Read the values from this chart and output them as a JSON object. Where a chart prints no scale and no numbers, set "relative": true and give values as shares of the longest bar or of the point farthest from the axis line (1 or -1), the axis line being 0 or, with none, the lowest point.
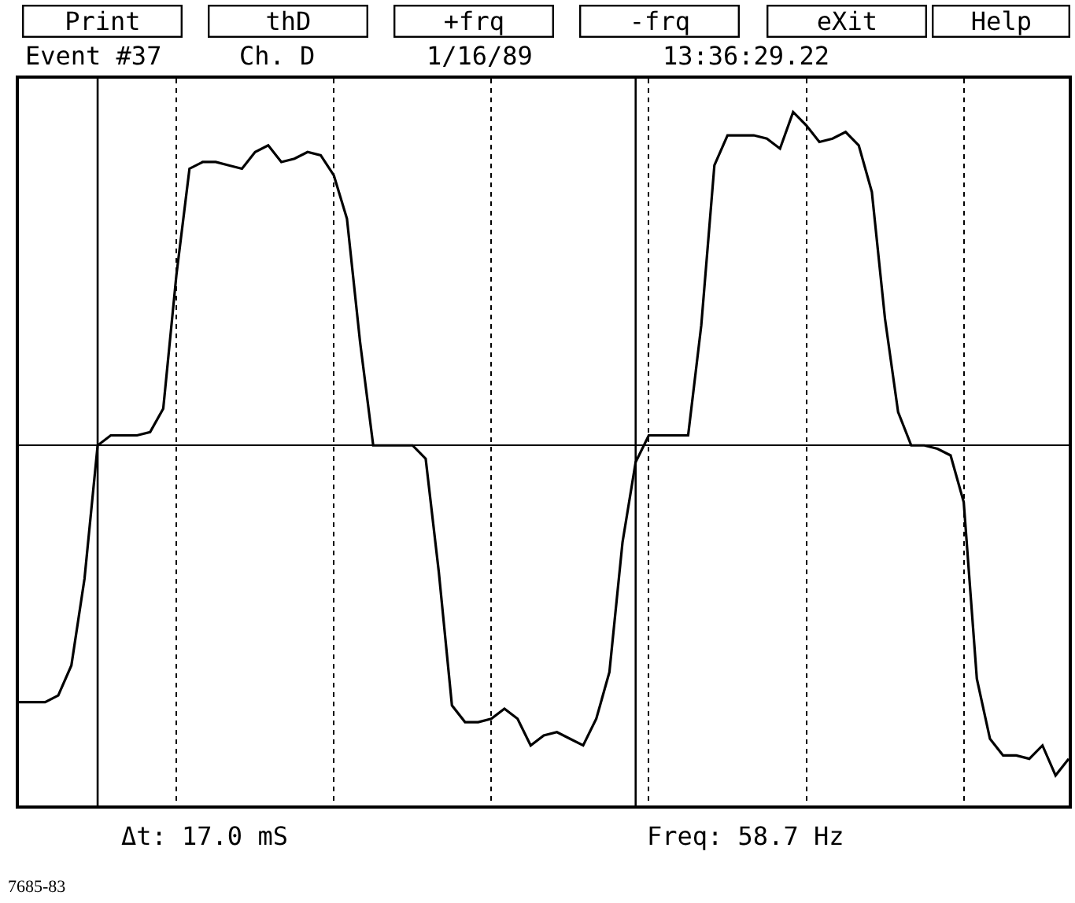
{
  "chart_data": {
    "type": "line",
    "relative": true,
    "annotations": [
      "Print",
      "thD",
      "+frq",
      "-frq",
      "eXit",
      "Help",
      "Event #37",
      "Ch. D",
      "1/16/89",
      "13:36:29.22",
      "Δt: 17.0 mS",
      "Freq: 58.7 Hz",
      "7685-83"
    ],
    "categories": [
      null,
      null,
      null,
      null,
      null,
      null,
      null,
      null,
      null,
      null,
      null,
      null,
      null,
      null,
      null,
      null,
      null,
      null,
      null,
      null,
      null,
      null,
      null,
      null,
      null,
      null,
      null,
      null,
      null,
      null,
      null,
      null,
      null,
      null,
      null,
      null,
      null,
      null,
      null,
      null,
      null,
      null,
      null,
      null,
      null,
      null,
      null,
      null,
      null,
      null,
      null,
      null,
      null,
      null,
      null,
      null,
      null,
      null,
      null,
      null,
      null,
      null,
      null,
      null,
      null,
      null,
      null,
      null,
      null,
      null,
      null,
      null,
      null,
      null,
      null,
      null,
      null,
      null,
      null,
      null,
      null
    ],
    "series": [
      {
        "color": "#000000",
        "values": [
          -0.77,
          -0.77,
          -0.77,
          -0.75,
          -0.66,
          -0.4,
          0.0,
          0.03,
          0.03,
          0.03,
          0.04,
          0.11,
          0.51,
          0.83,
          0.85,
          0.85,
          0.84,
          0.83,
          0.88,
          0.9,
          0.85,
          0.86,
          0.88,
          0.87,
          0.81,
          0.68,
          0.31,
          0.0,
          0.0,
          0.0,
          0.0,
          -0.04,
          -0.38,
          -0.78,
          -0.83,
          -0.83,
          -0.82,
          -0.79,
          -0.82,
          -0.9,
          -0.87,
          -0.86,
          -0.88,
          -0.9,
          -0.82,
          -0.68,
          -0.29,
          -0.05,
          0.03,
          0.03,
          0.03,
          0.03,
          0.36,
          0.84,
          0.93,
          0.93,
          0.93,
          0.92,
          0.89,
          1.0,
          0.96,
          0.91,
          0.92,
          0.94,
          0.9,
          0.76,
          0.38,
          0.1,
          0.0,
          0.0,
          -0.01,
          -0.03,
          -0.17,
          -0.7,
          -0.88,
          -0.93,
          -0.93,
          -0.94,
          -0.9,
          -0.99,
          -0.94
        ]
      }
    ],
    "grid": "x",
    "marker": "none",
    "line_style": "solid"
  }
}
